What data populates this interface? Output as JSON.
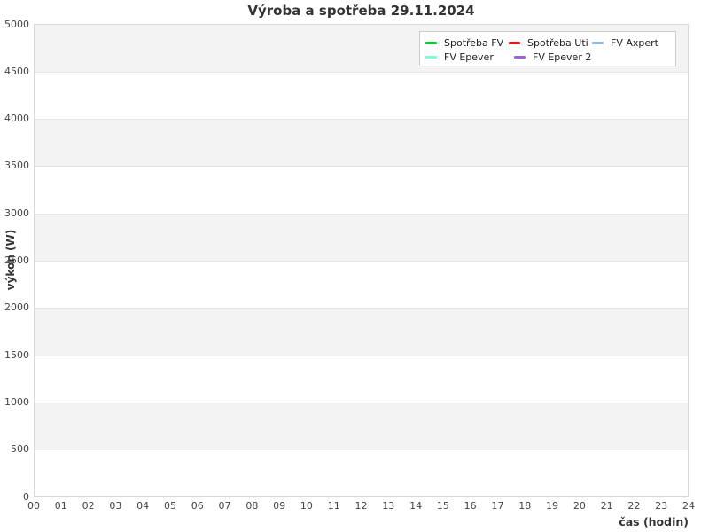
{
  "chart": {
    "title": "Výroba a spotřeba 29.11.2024",
    "xlabel": "čas (hodin)",
    "ylabel": "výkon (W)"
  },
  "chart_data": {
    "type": "line",
    "title": "Výroba a spotřeba 29.11.2024",
    "xlabel": "čas (hodin)",
    "ylabel": "výkon (W)",
    "xlim": [
      0,
      24
    ],
    "ylim": [
      0,
      5000
    ],
    "x_ticks": [
      "00",
      "01",
      "02",
      "03",
      "04",
      "05",
      "06",
      "07",
      "08",
      "09",
      "10",
      "11",
      "12",
      "13",
      "14",
      "15",
      "16",
      "17",
      "18",
      "19",
      "20",
      "21",
      "22",
      "23",
      "24"
    ],
    "y_ticks": [
      0,
      500,
      1000,
      1500,
      2000,
      2500,
      3000,
      3500,
      4000,
      4500,
      5000
    ],
    "grid": "horizontal-bands",
    "legend_position": "top-right",
    "legend_rows": [
      [
        0,
        1,
        2
      ],
      [
        3,
        4
      ]
    ],
    "series": [
      {
        "name": "Spotřeba FV",
        "color": "#00cc33",
        "values": []
      },
      {
        "name": "Spotřeba Uti",
        "color": "#ee1111",
        "values": []
      },
      {
        "name": "FV Axpert",
        "color": "#92b5dc",
        "values": []
      },
      {
        "name": "FV Epever",
        "color": "#7dfbd9",
        "values": []
      },
      {
        "name": "FV Epever 2",
        "color": "#9b63d8",
        "values": []
      }
    ],
    "note": "no data plotted (empty series)"
  }
}
